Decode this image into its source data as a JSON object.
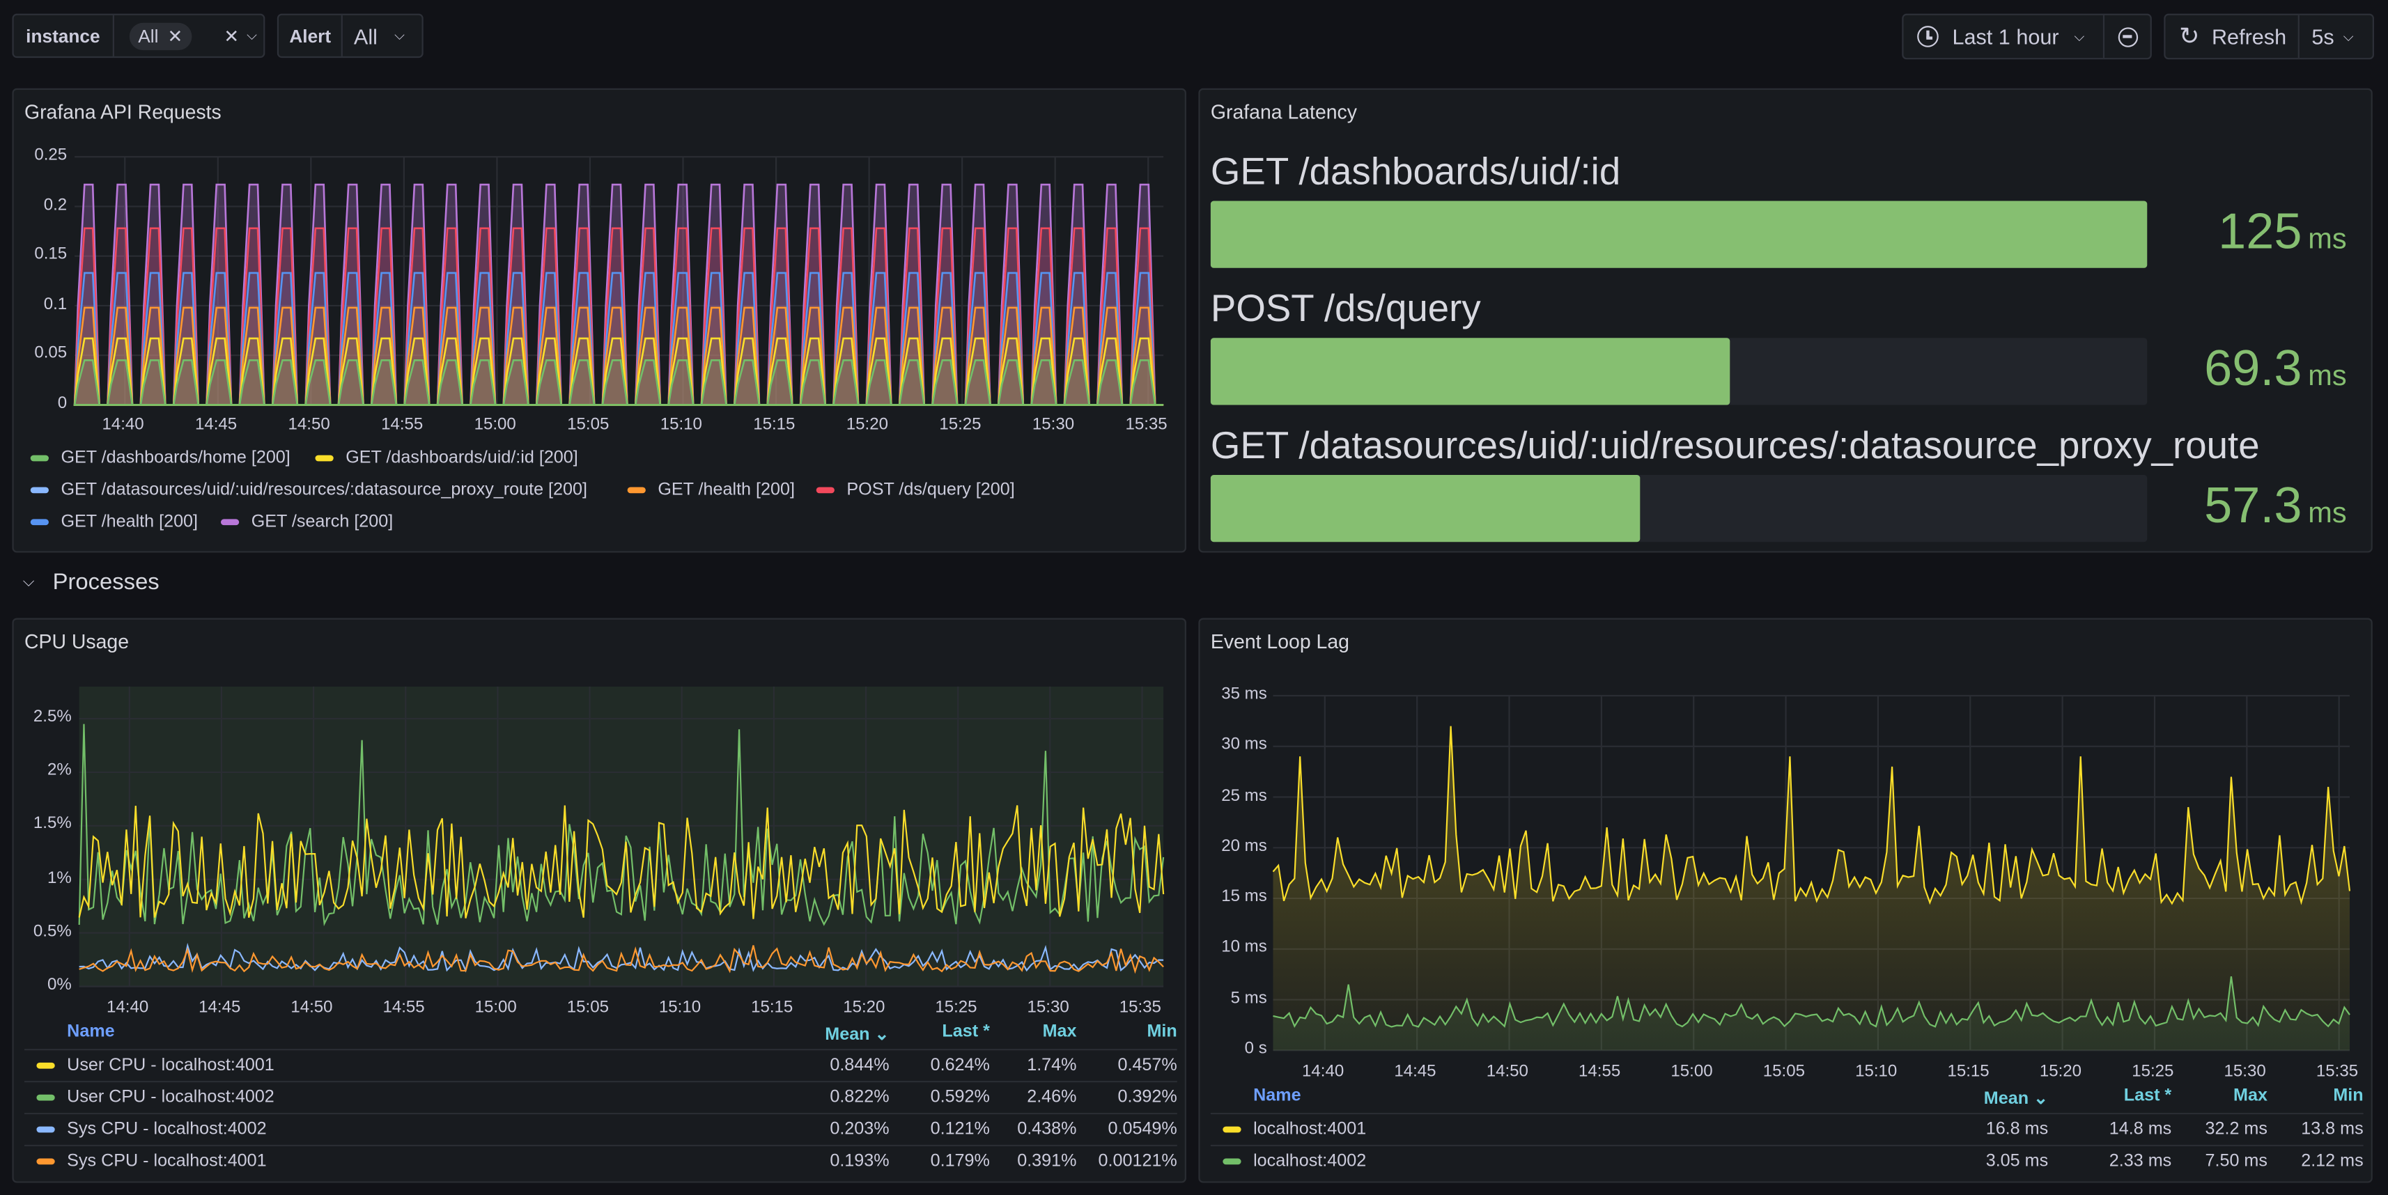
{
  "toolbar": {
    "instance_label": "instance",
    "instance_chip": "All",
    "alert_label": "Alert",
    "alert_value": "All",
    "time_range": "Last 1 hour",
    "refresh_label": "Refresh",
    "refresh_interval": "5s"
  },
  "row_processes": {
    "title": "Processes"
  },
  "panels": {
    "api": {
      "title": "Grafana API Requests",
      "y_ticks": [
        "0.25",
        "0.2",
        "0.15",
        "0.1",
        "0.05",
        "0"
      ],
      "x_ticks": [
        "14:40",
        "14:45",
        "14:50",
        "14:55",
        "15:00",
        "15:05",
        "15:10",
        "15:15",
        "15:20",
        "15:25",
        "15:30",
        "15:35"
      ],
      "legend": [
        {
          "label": "GET /dashboards/home [200]",
          "color": "#73bf69"
        },
        {
          "label": "GET /dashboards/uid/:id [200]",
          "color": "#fade2a"
        },
        {
          "label": "GET /datasources/uid/:uid/resources/:datasource_proxy_route [200]",
          "color": "#8ab8ff"
        },
        {
          "label": "GET /health [200]",
          "color": "#ff9830"
        },
        {
          "label": "POST /ds/query [200]",
          "color": "#f2495c"
        },
        {
          "label": "GET /health [200]",
          "color": "#5794f2"
        },
        {
          "label": "GET /search [200]",
          "color": "#b877d9"
        }
      ]
    },
    "latency": {
      "title": "Grafana Latency",
      "items": [
        {
          "name": "GET /dashboards/uid/:id",
          "value": "125",
          "unit": "ms",
          "fraction": 1.0
        },
        {
          "name": "POST /ds/query",
          "value": "69.3",
          "unit": "ms",
          "fraction": 0.554
        },
        {
          "name": "GET /datasources/uid/:uid/resources/:datasource_proxy_route",
          "value": "57.3",
          "unit": "ms",
          "fraction": 0.458
        }
      ]
    },
    "cpu": {
      "title": "CPU Usage",
      "y_ticks": [
        "2.5%",
        "2%",
        "1.5%",
        "1%",
        "0.5%",
        "0%"
      ],
      "x_ticks": [
        "14:40",
        "14:45",
        "14:50",
        "14:55",
        "15:00",
        "15:05",
        "15:10",
        "15:15",
        "15:20",
        "15:25",
        "15:30",
        "15:35"
      ],
      "headers": {
        "name": "Name",
        "mean": "Mean",
        "last": "Last *",
        "max": "Max",
        "min": "Min"
      },
      "rows": [
        {
          "name": "User CPU - localhost:4001",
          "color": "#fade2a",
          "mean": "0.844%",
          "last": "0.624%",
          "max": "1.74%",
          "min": "0.457%"
        },
        {
          "name": "User CPU - localhost:4002",
          "color": "#73bf69",
          "mean": "0.822%",
          "last": "0.592%",
          "max": "2.46%",
          "min": "0.392%"
        },
        {
          "name": "Sys CPU - localhost:4002",
          "color": "#8ab8ff",
          "mean": "0.203%",
          "last": "0.121%",
          "max": "0.438%",
          "min": "0.0549%"
        },
        {
          "name": "Sys CPU - localhost:4001",
          "color": "#ff9830",
          "mean": "0.193%",
          "last": "0.179%",
          "max": "0.391%",
          "min": "0.00121%"
        }
      ]
    },
    "lag": {
      "title": "Event Loop Lag",
      "y_ticks": [
        "35 ms",
        "30 ms",
        "25 ms",
        "20 ms",
        "15 ms",
        "10 ms",
        "5 ms",
        "0 s"
      ],
      "x_ticks": [
        "14:40",
        "14:45",
        "14:50",
        "14:55",
        "15:00",
        "15:05",
        "15:10",
        "15:15",
        "15:20",
        "15:25",
        "15:30",
        "15:35"
      ],
      "headers": {
        "name": "Name",
        "mean": "Mean",
        "last": "Last *",
        "max": "Max",
        "min": "Min"
      },
      "rows": [
        {
          "name": "localhost:4001",
          "color": "#fade2a",
          "mean": "16.8 ms",
          "last": "14.8 ms",
          "max": "32.2 ms",
          "min": "13.8 ms"
        },
        {
          "name": "localhost:4002",
          "color": "#73bf69",
          "mean": "3.05 ms",
          "last": "2.33 ms",
          "max": "7.50 ms",
          "min": "2.12 ms"
        }
      ]
    }
  }
}
